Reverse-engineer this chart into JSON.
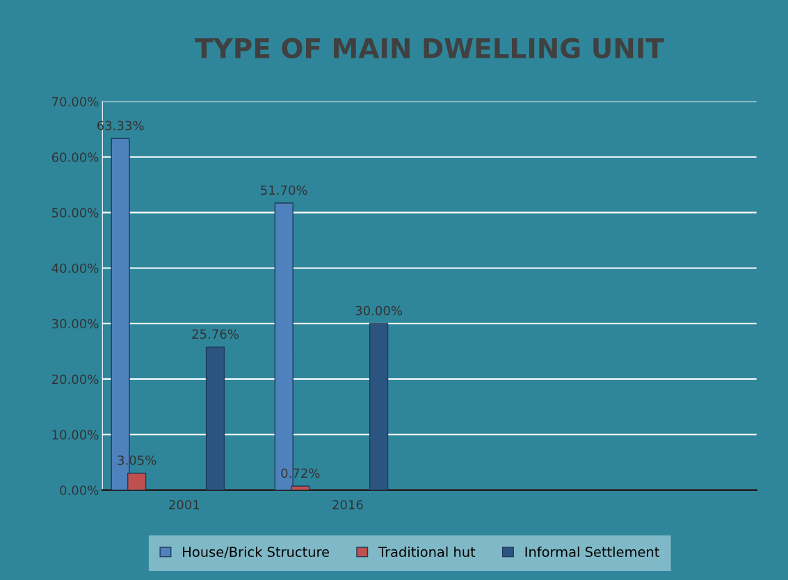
{
  "chart_data": {
    "type": "bar",
    "title": "TYPE OF MAIN DWELLING UNIT",
    "categories": [
      "2001",
      "2016",
      null,
      null
    ],
    "series": [
      {
        "name": "House/Brick Structure",
        "color": "#4f81bd",
        "values": [
          63.33,
          51.7,
          null,
          null
        ],
        "value_labels": [
          "63.33%",
          "51.70%",
          null,
          null
        ]
      },
      {
        "name": "Traditional hut",
        "color": "#c0504d",
        "values": [
          3.05,
          0.72,
          null,
          null
        ],
        "value_labels": [
          "3.05%",
          "0.72%",
          null,
          null
        ]
      },
      {
        "name": "Informal Settlement",
        "color": "#2c5480",
        "values": [
          25.76,
          30.0,
          null,
          null
        ],
        "value_labels": [
          "25.76%",
          "30.00%",
          null,
          null
        ]
      }
    ],
    "ylim": [
      0,
      70
    ],
    "yticks": [
      {
        "value": 0,
        "label": "0.00%"
      },
      {
        "value": 10,
        "label": "10.00%"
      },
      {
        "value": 20,
        "label": "20.00%"
      },
      {
        "value": 30,
        "label": "30.00%"
      },
      {
        "value": 40,
        "label": "40.00%"
      },
      {
        "value": 50,
        "label": "50.00%"
      },
      {
        "value": 60,
        "label": "60.00%"
      },
      {
        "value": 70,
        "label": "70.00%"
      }
    ],
    "grid": "y",
    "legend": "bottom"
  }
}
